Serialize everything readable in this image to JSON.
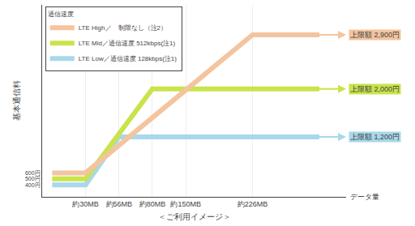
{
  "chart_data": {
    "type": "line",
    "ylabel": "基本通信料",
    "xlabel": "データ量",
    "subtitle": "＜ご利用イメージ＞",
    "legend_title": "通信速度",
    "legend": "upper left",
    "grid": true,
    "xlim": [
      -0.3,
      8.8
    ],
    "ylim": [
      200,
      3400
    ],
    "xticks": [
      {
        "value": 1,
        "label": "約30MB"
      },
      {
        "value": 2,
        "label": "約56MB"
      },
      {
        "value": 3,
        "label": "約80MB"
      },
      {
        "value": 4,
        "label": "約150MB"
      },
      {
        "value": 6,
        "label": "約226MB"
      }
    ],
    "yticks": [
      {
        "value": 400,
        "label": "400円"
      },
      {
        "value": 500,
        "label": "500円"
      },
      {
        "value": 600,
        "label": "600円"
      }
    ],
    "series": [
      {
        "name": "LTE Low／通信速度 128kbps(注1)",
        "color": "#a8d8ea",
        "x": [
          0,
          1,
          2,
          8
        ],
        "values": [
          400,
          400,
          1200,
          1200
        ]
      },
      {
        "name": "LTE Mid／通信速度 512kbps(注1)",
        "color": "#c8e44a",
        "x": [
          0,
          1,
          3,
          8
        ],
        "values": [
          500,
          500,
          2000,
          2000
        ]
      },
      {
        "name": "LTE High／　制限なし（注2）",
        "color": "#f4c49e",
        "x": [
          0,
          1,
          6,
          8
        ],
        "values": [
          600,
          600,
          2900,
          2900
        ]
      }
    ],
    "annotations": [
      {
        "text": "上限額 2,900円",
        "y": 2900,
        "color": "#f4c49e"
      },
      {
        "text": "上限額 2,000円",
        "y": 2000,
        "color": "#c8e44a"
      },
      {
        "text": "上限額 1,200円",
        "y": 1200,
        "color": "#a8d8ea"
      }
    ]
  }
}
